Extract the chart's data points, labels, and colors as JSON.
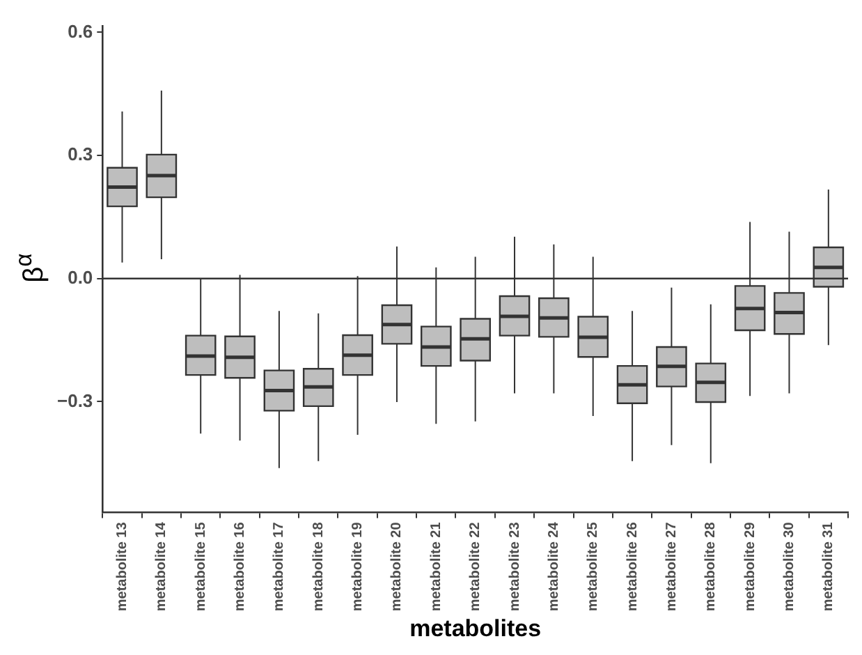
{
  "chart_data": {
    "type": "box",
    "xlabel": "metabolites",
    "ylabel": "β$^{α}$",
    "categories": [
      "metabolite 13",
      "metabolite 14",
      "metabolite 15",
      "metabolite 16",
      "metabolite 17",
      "metabolite 18",
      "metabolite 19",
      "metabolite 20",
      "metabolite 21",
      "metabolite 22",
      "metabolite 23",
      "metabolite 24",
      "metabolite 25",
      "metabolite 26",
      "metabolite 27",
      "metabolite 28",
      "metabolite 29",
      "metabolite 30",
      "metabolite 31"
    ],
    "boxes": [
      {
        "low": 0.039,
        "q1": 0.176,
        "median": 0.223,
        "q3": 0.27,
        "high": 0.407
      },
      {
        "low": 0.047,
        "q1": 0.198,
        "median": 0.251,
        "q3": 0.302,
        "high": 0.458
      },
      {
        "low": -0.378,
        "q1": -0.235,
        "median": -0.189,
        "q3": -0.139,
        "high": -0.002
      },
      {
        "low": -0.395,
        "q1": -0.242,
        "median": -0.192,
        "q3": -0.141,
        "high": 0.009
      },
      {
        "low": -0.462,
        "q1": -0.322,
        "median": -0.273,
        "q3": -0.224,
        "high": -0.079
      },
      {
        "low": -0.445,
        "q1": -0.311,
        "median": -0.264,
        "q3": -0.22,
        "high": -0.085
      },
      {
        "low": -0.381,
        "q1": -0.235,
        "median": -0.187,
        "q3": -0.138,
        "high": 0.006
      },
      {
        "low": -0.301,
        "q1": -0.159,
        "median": -0.112,
        "q3": -0.065,
        "high": 0.078
      },
      {
        "low": -0.354,
        "q1": -0.213,
        "median": -0.167,
        "q3": -0.117,
        "high": 0.027
      },
      {
        "low": -0.348,
        "q1": -0.2,
        "median": -0.147,
        "q3": -0.098,
        "high": 0.053
      },
      {
        "low": -0.28,
        "q1": -0.139,
        "median": -0.092,
        "q3": -0.043,
        "high": 0.102
      },
      {
        "low": -0.28,
        "q1": -0.142,
        "median": -0.096,
        "q3": -0.048,
        "high": 0.083
      },
      {
        "low": -0.335,
        "q1": -0.191,
        "median": -0.143,
        "q3": -0.093,
        "high": 0.053
      },
      {
        "low": -0.445,
        "q1": -0.304,
        "median": -0.259,
        "q3": -0.213,
        "high": -0.079
      },
      {
        "low": -0.406,
        "q1": -0.263,
        "median": -0.214,
        "q3": -0.167,
        "high": -0.022
      },
      {
        "low": -0.45,
        "q1": -0.301,
        "median": -0.253,
        "q3": -0.207,
        "high": -0.063
      },
      {
        "low": -0.286,
        "q1": -0.126,
        "median": -0.073,
        "q3": -0.018,
        "high": 0.138
      },
      {
        "low": -0.28,
        "q1": -0.135,
        "median": -0.083,
        "q3": -0.035,
        "high": 0.114
      },
      {
        "low": -0.162,
        "q1": -0.02,
        "median": 0.027,
        "q3": 0.076,
        "high": 0.217
      }
    ],
    "color": "#bebebe",
    "ylim": [
      -0.57,
      0.615
    ],
    "yticks": [
      {
        "value": -0.3,
        "label": "−0.3"
      },
      {
        "value": 0,
        "label": "0.0"
      },
      {
        "value": 0.3,
        "label": "0.3"
      },
      {
        "value": 0.6,
        "label": "0.6"
      }
    ],
    "ref_lines": [
      {
        "axis": "y",
        "value": 0,
        "color": "#333333"
      }
    ],
    "grid": false,
    "legend": false
  }
}
